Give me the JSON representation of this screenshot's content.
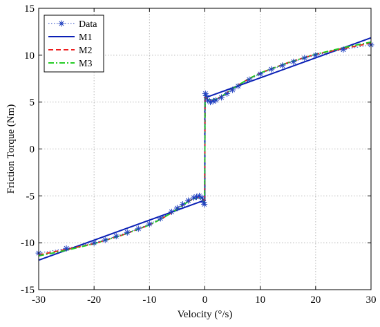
{
  "chart_data": {
    "type": "line",
    "title": "",
    "xlabel": "Velocity (°/s)",
    "ylabel": "Friction Torque (Nm)",
    "xlim": [
      -30,
      30
    ],
    "ylim": [
      -15,
      15
    ],
    "xticks": [
      "-30",
      "-20",
      "-10",
      "0",
      "10",
      "20",
      "30"
    ],
    "yticks": [
      "15",
      "10",
      "5",
      "0",
      "-5",
      "-10",
      "-15"
    ],
    "grid": true,
    "legend_position": "top-left",
    "series": [
      {
        "name": "Data",
        "color": "#1f3fbf",
        "style": "dotted-star",
        "x": [
          -30,
          -25,
          -20,
          -18,
          -16,
          -14,
          -12,
          -10,
          -8,
          -6,
          -5,
          -4,
          -3,
          -2,
          -1.5,
          -1,
          -0.5,
          -0.2,
          -0.1,
          0.1,
          0.2,
          0.5,
          1,
          1.5,
          2,
          3,
          4,
          5,
          6,
          8,
          10,
          12,
          14,
          16,
          18,
          20,
          25,
          30
        ],
        "y": [
          -11.1,
          -10.6,
          -10.0,
          -9.7,
          -9.3,
          -8.9,
          -8.5,
          -8.0,
          -7.4,
          -6.7,
          -6.3,
          -5.9,
          -5.5,
          -5.2,
          -5.1,
          -5.0,
          -5.2,
          -5.7,
          -5.9,
          5.9,
          5.7,
          5.2,
          5.0,
          5.1,
          5.2,
          5.5,
          5.9,
          6.3,
          6.7,
          7.4,
          8.0,
          8.5,
          8.9,
          9.3,
          9.7,
          10.0,
          10.6,
          11.1
        ]
      },
      {
        "name": "M1",
        "color": "#0a1fb5",
        "style": "solid",
        "x": [
          -30,
          -0.001,
          0.001,
          30
        ],
        "y": [
          -11.85,
          -5.45,
          5.45,
          11.85
        ]
      },
      {
        "name": "M2",
        "color": "#ee1c1c",
        "style": "dashed",
        "x": [
          -30,
          -25,
          -20,
          -15,
          -10,
          -8,
          -6,
          -4,
          -3,
          -2,
          -1,
          -0.5,
          -0.05,
          0.05,
          0.5,
          1,
          2,
          3,
          4,
          6,
          8,
          10,
          15,
          20,
          25,
          30
        ],
        "y": [
          -11.3,
          -10.7,
          -10.1,
          -9.2,
          -8.1,
          -7.5,
          -6.8,
          -6.0,
          -5.6,
          -5.3,
          -5.1,
          -5.2,
          -5.7,
          5.7,
          5.2,
          5.1,
          5.3,
          5.6,
          6.0,
          6.8,
          7.5,
          8.1,
          9.2,
          10.1,
          10.7,
          11.3
        ]
      },
      {
        "name": "M3",
        "color": "#22cc22",
        "style": "dashdot",
        "x": [
          -30,
          -25,
          -20,
          -15,
          -10,
          -8,
          -6,
          -4,
          -3,
          -2,
          -1,
          -0.5,
          -0.05,
          0.05,
          0.5,
          1,
          2,
          3,
          4,
          6,
          8,
          10,
          15,
          20,
          25,
          30
        ],
        "y": [
          -11.4,
          -10.8,
          -10.1,
          -9.2,
          -8.1,
          -7.5,
          -6.8,
          -6.0,
          -5.6,
          -5.3,
          -5.2,
          -5.4,
          -5.8,
          5.8,
          5.4,
          5.2,
          5.3,
          5.6,
          6.0,
          6.8,
          7.5,
          8.1,
          9.2,
          10.1,
          10.8,
          11.4
        ]
      }
    ]
  }
}
